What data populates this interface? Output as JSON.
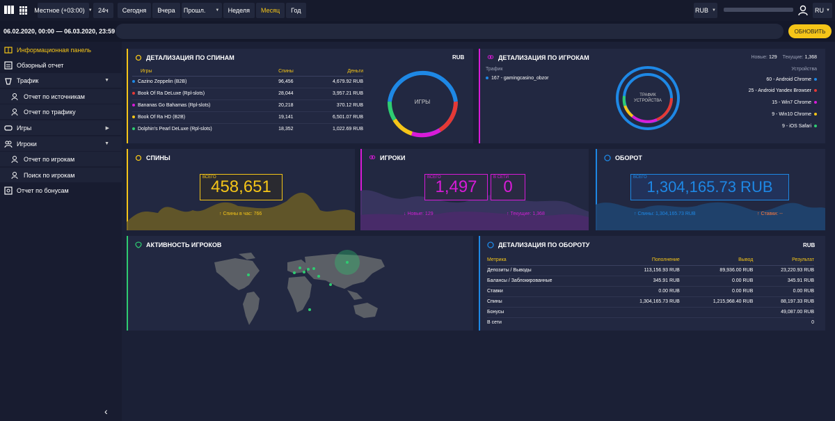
{
  "topbar": {
    "timezone": "Местное (+03:00)",
    "periods": [
      "24ч",
      "Сегодня",
      "Вчера",
      "Прошл.",
      "Неделя",
      "Месяц",
      "Год"
    ],
    "active_period": "Месяц",
    "currency": "RUB",
    "lang": "RU"
  },
  "datebar": {
    "range": "06.02.2020, 00:00 — 06.03.2020, 23:59",
    "refresh": "ОБНОВИТЬ"
  },
  "sidebar": {
    "items": [
      {
        "label": "Информационная панель"
      },
      {
        "label": "Обзорный отчет"
      },
      {
        "label": "Трафик"
      },
      {
        "label": "Отчет по источникам"
      },
      {
        "label": "Отчет по трафику"
      },
      {
        "label": "Игры"
      },
      {
        "label": "Игроки"
      },
      {
        "label": "Отчет по игрокам"
      },
      {
        "label": "Поиск по игрокам"
      },
      {
        "label": "Отчет по бонусам"
      }
    ]
  },
  "spins_detail": {
    "title": "ДЕТАЛИЗАЦИЯ ПО СПИНАМ",
    "currency": "RUB",
    "columns": [
      "Игры",
      "Спины",
      "Деньги"
    ],
    "rows": [
      {
        "name": "Cazino Zeppelin (B2B)",
        "spins": "96,456",
        "money": "4,679.92 RUB",
        "color": "#1e88e5"
      },
      {
        "name": "Book Of Ra DeLuxe (Rpl-slots)",
        "spins": "28,044",
        "money": "3,957.21 RUB",
        "color": "#e53935"
      },
      {
        "name": "Bananas Go Bahamas (Rpl-slots)",
        "spins": "20,218",
        "money": "370.12 RUB",
        "color": "#d81bd8"
      },
      {
        "name": "Book Of Ra HD (B2B)",
        "spins": "19,141",
        "money": "6,501.07 RUB",
        "color": "#f5c518"
      },
      {
        "name": "Dolphin's Pearl DeLuxe (Rpl-slots)",
        "spins": "18,352",
        "money": "1,022.69 RUB",
        "color": "#2ecc71"
      }
    ],
    "donut_label": "ИГРЫ"
  },
  "players_detail": {
    "title": "ДЕТАЛИЗАЦИЯ ПО ИГРОКАМ",
    "new_label": "Новые:",
    "new_value": "129",
    "current_label": "Текущие:",
    "current_value": "1,368",
    "traffic_label": "Трафик",
    "traffic_item": "167 - gamingcasino_obzor",
    "devices_label": "Устройства",
    "donut_label_1": "ТРАФИК",
    "donut_label_2": "УСТРОЙСТВА",
    "devices": [
      {
        "label": "60 - Android Chrome",
        "color": "#1e88e5"
      },
      {
        "label": "25 - Android Yandex Browser",
        "color": "#e53935"
      },
      {
        "label": "15 - Win7 Chrome",
        "color": "#d81bd8"
      },
      {
        "label": "9 - Win10 Chrome",
        "color": "#f5c518"
      },
      {
        "label": "9 - iOS Safari",
        "color": "#2ecc71"
      }
    ]
  },
  "spins_card": {
    "title": "СПИНЫ",
    "all_label": "ВСЕГО",
    "value": "458,651",
    "footer": "Спины в час: 766"
  },
  "players_card": {
    "title": "ИГРОКИ",
    "all_label": "ВСЕГО",
    "value": "1,497",
    "online_label": "В СЕТИ",
    "online_value": "0",
    "new_footer": "Новые: 129",
    "current_footer": "Текущие: 1,368"
  },
  "turnover_card": {
    "title": "ОБОРОТ",
    "all_label": "ВСЕГО",
    "value": "1,304,165.73 RUB",
    "spins_footer": "Спины: 1,304,165.73 RUB",
    "bets_footer": "Ставки: --"
  },
  "activity": {
    "title": "АКТИВНОСТЬ ИГРОКОВ"
  },
  "turnover_detail": {
    "title": "ДЕТАЛИЗАЦИЯ ПО ОБОРОТУ",
    "currency": "RUB",
    "columns": [
      "Метрика",
      "Пополнение",
      "Вывод",
      "Результат"
    ],
    "rows": [
      [
        "Депозиты / Выводы",
        "113,156.93 RUB",
        "89,936.00 RUB",
        "23,220.93 RUB"
      ],
      [
        "Балансы / Заблокированные",
        "345.91 RUB",
        "0.00 RUB",
        "345.91 RUB"
      ],
      [
        "Ставки",
        "0.00 RUB",
        "0.00 RUB",
        "0.00 RUB"
      ],
      [
        "Спины",
        "1,304,165.73 RUB",
        "1,215,968.40 RUB",
        "88,197.33 RUB"
      ],
      [
        "Бонусы",
        "",
        "",
        "49,087.00 RUB"
      ],
      [
        "В сети",
        "",
        "",
        "0"
      ]
    ]
  }
}
